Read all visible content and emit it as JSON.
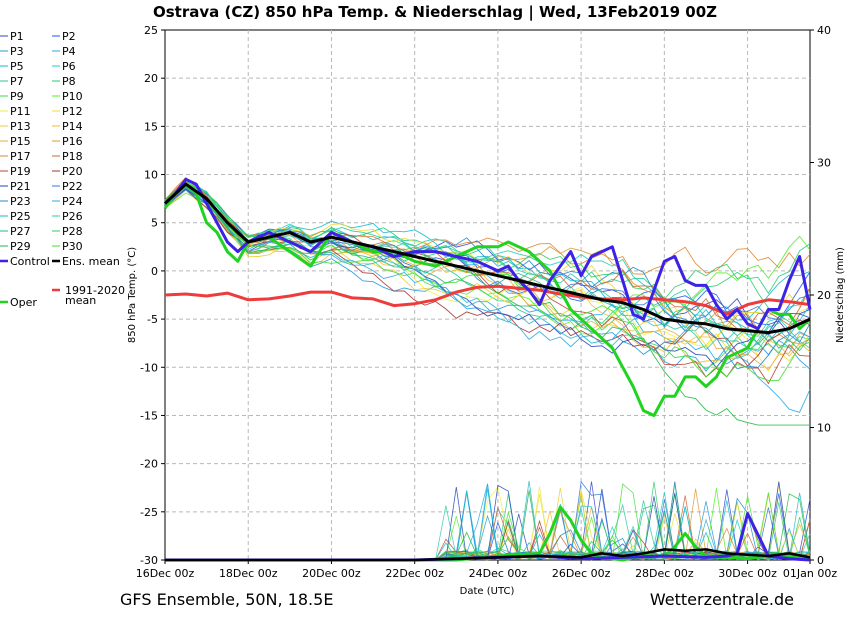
{
  "chart_data": {
    "type": "line",
    "title": "Ostrava  (CZ)  850 hPa Temp. & Niederschlag | Wed, 13Feb2019 00Z",
    "xlabel": "Date (UTC)",
    "ylabel": "850 hPa Temp. (°C)",
    "y2label": "Niederschlag (mm)",
    "xlim": [
      0,
      15.5
    ],
    "ylim": [
      -30,
      25
    ],
    "y2lim": [
      0,
      40
    ],
    "x_ticks": [
      0,
      2,
      4,
      6,
      8,
      10,
      12,
      14,
      15.5
    ],
    "x_tick_labels": [
      "16Dec 00z",
      "18Dec 00z",
      "20Dec 00z",
      "22Dec 00z",
      "24Dec 00z",
      "26Dec 00z",
      "28Dec 00z",
      "30Dec 00z",
      "01Jan 00z"
    ],
    "y_ticks": [
      25,
      20,
      15,
      10,
      5,
      0,
      -5,
      -10,
      -15,
      -20,
      -25,
      -30
    ],
    "y_tick_labels": [
      "25",
      "20",
      "15",
      "10",
      "5",
      "0",
      "-5",
      "-10",
      "-15",
      "-20",
      "-25",
      "-30"
    ],
    "y2_ticks": [
      40,
      30,
      20,
      10,
      0
    ],
    "y2_tick_labels": [
      "40",
      "30",
      "20",
      "10",
      "0"
    ],
    "grid": true,
    "footer_left": "GFS Ensemble, 50N, 18.5E",
    "footer_right": "Wetterzentrale.de",
    "legend": [
      {
        "label": "P1",
        "color": "#3344cc"
      },
      {
        "label": "P2",
        "color": "#2255ee"
      },
      {
        "label": "P3",
        "color": "#2299dd"
      },
      {
        "label": "P4",
        "color": "#22aaee"
      },
      {
        "label": "P5",
        "color": "#11bbcc"
      },
      {
        "label": "P6",
        "color": "#22ccbb"
      },
      {
        "label": "P7",
        "color": "#22cc99"
      },
      {
        "label": "P8",
        "color": "#22cc77"
      },
      {
        "label": "P9",
        "color": "#33dd55"
      },
      {
        "label": "P10",
        "color": "#55ee22"
      },
      {
        "label": "P11",
        "color": "#eeee44"
      },
      {
        "label": "P12",
        "color": "#eedd33"
      },
      {
        "label": "P13",
        "color": "#eecc33"
      },
      {
        "label": "P14",
        "color": "#eebb33"
      },
      {
        "label": "P15",
        "color": "#eeaa44"
      },
      {
        "label": "P16",
        "color": "#dd9933"
      },
      {
        "label": "P17",
        "color": "#dd8833"
      },
      {
        "label": "P18",
        "color": "#cc6633"
      },
      {
        "label": "P19",
        "color": "#bb4433"
      },
      {
        "label": "P20",
        "color": "#aa3333"
      },
      {
        "label": "P21",
        "color": "#2244bb"
      },
      {
        "label": "P22",
        "color": "#3377dd"
      },
      {
        "label": "P23",
        "color": "#2288cc"
      },
      {
        "label": "P24",
        "color": "#33aadd"
      },
      {
        "label": "P25",
        "color": "#22bbcc"
      },
      {
        "label": "P26",
        "color": "#33ccaa"
      },
      {
        "label": "P27",
        "color": "#22bb88"
      },
      {
        "label": "P28",
        "color": "#33cc66"
      },
      {
        "label": "P29",
        "color": "#22bb44"
      },
      {
        "label": "P30",
        "color": "#44dd33"
      },
      {
        "label": "Control",
        "color": "#3b22e6"
      },
      {
        "label": "Ens. mean",
        "color": "#000000"
      },
      {
        "label": "Oper",
        "color": "#1fd31f"
      },
      {
        "label": "1991-2020 mean",
        "color": "#ee3b3b"
      }
    ],
    "members_note": "P1-P30 are thin spaghetti lines spread around the ensemble mean (see series for plotted values)",
    "series": [
      {
        "name": "Control",
        "color": "#3b22e6",
        "x": [
          0,
          0.25,
          0.5,
          0.75,
          1,
          1.25,
          1.5,
          1.75,
          2,
          2.5,
          3,
          3.5,
          4,
          4.5,
          5,
          5.5,
          6,
          6.5,
          7,
          7.5,
          8,
          8.25,
          8.5,
          8.75,
          9,
          9.25,
          9.5,
          9.75,
          10,
          10.25,
          10.5,
          10.75,
          11,
          11.25,
          11.5,
          11.75,
          12,
          12.25,
          12.5,
          12.75,
          13,
          13.25,
          13.5,
          13.75,
          14,
          14.25,
          14.5,
          14.75,
          15,
          15.25,
          15.5
        ],
        "values": [
          7,
          8,
          9.5,
          9,
          7,
          5,
          3,
          2,
          3,
          4,
          3,
          2,
          4,
          3,
          2.5,
          1.5,
          2,
          2,
          1.5,
          1,
          0,
          0.5,
          -1,
          -2,
          -3.5,
          -1,
          0.5,
          2,
          -0.5,
          1.5,
          2,
          2.5,
          -1,
          -4.5,
          -5,
          -2,
          1,
          1.5,
          -1,
          -1.5,
          -1.5,
          -3.5,
          -5,
          -4,
          -5.5,
          -6,
          -4,
          -4,
          -1,
          1.5,
          -4
        ]
      },
      {
        "name": "Oper",
        "color": "#1fd31f",
        "x": [
          0,
          0.25,
          0.5,
          0.75,
          1,
          1.25,
          1.5,
          1.75,
          2,
          2.5,
          3,
          3.5,
          4,
          4.5,
          5,
          5.5,
          6,
          6.5,
          7,
          7.5,
          8,
          8.25,
          8.5,
          8.75,
          9,
          9.25,
          9.5,
          9.75,
          10,
          10.25,
          10.5,
          10.75,
          11,
          11.25,
          11.5,
          11.75,
          12,
          12.25,
          12.5,
          12.75,
          13,
          13.25,
          13.5,
          13.75,
          14,
          14.25,
          14.5,
          14.75,
          15,
          15.25,
          15.5
        ],
        "values": [
          6.5,
          8,
          9,
          8,
          5,
          4,
          2,
          1,
          3,
          3.5,
          2,
          0.5,
          4,
          3,
          2,
          2,
          1,
          0.5,
          1.5,
          2.5,
          2.5,
          3,
          2.5,
          2,
          1,
          0,
          -2,
          -4,
          -5,
          -6,
          -7,
          -8,
          -10,
          -12,
          -14.5,
          -15,
          -13,
          -13,
          -11,
          -11,
          -12,
          -11,
          -9,
          -8.5,
          -8,
          -6,
          -4,
          -4.5,
          -4.5,
          -6,
          -5
        ]
      },
      {
        "name": "Ens. mean",
        "color": "#000000",
        "x": [
          0,
          0.5,
          1,
          1.5,
          2,
          2.5,
          3,
          3.5,
          4,
          4.5,
          5,
          5.5,
          6,
          6.5,
          7,
          7.5,
          8,
          8.5,
          9,
          9.5,
          10,
          10.5,
          11,
          11.5,
          12,
          12.5,
          13,
          13.5,
          14,
          14.5,
          15,
          15.5
        ],
        "values": [
          7,
          9,
          7.5,
          5,
          3,
          3.5,
          4,
          3,
          3.5,
          3,
          2.5,
          2,
          1.5,
          1,
          0.5,
          0,
          -0.5,
          -1,
          -1.5,
          -2,
          -2.5,
          -3,
          -3.3,
          -4,
          -5,
          -5.3,
          -5.5,
          -6,
          -6.2,
          -6.4,
          -6,
          -5
        ]
      },
      {
        "name": "1991-2020 mean",
        "color": "#ee3b3b",
        "x": [
          0,
          0.5,
          1,
          1.5,
          2,
          2.5,
          3,
          3.5,
          4,
          4.5,
          5,
          5.5,
          6,
          6.5,
          7,
          7.5,
          8,
          8.5,
          9,
          9.5,
          10,
          10.5,
          11,
          11.5,
          12,
          12.5,
          13,
          13.5,
          14,
          14.5,
          15,
          15.5
        ],
        "values": [
          -2.5,
          -2.4,
          -2.6,
          -2.3,
          -3,
          -2.9,
          -2.6,
          -2.2,
          -2.2,
          -2.8,
          -2.9,
          -3.6,
          -3.4,
          -3,
          -2.2,
          -1.7,
          -1.6,
          -1.8,
          -2,
          -2.4,
          -2.7,
          -2.9,
          -3,
          -2.8,
          -3,
          -3.2,
          -3.6,
          -4.5,
          -3.5,
          -3,
          -3.2,
          -3.5
        ]
      },
      {
        "name": "Oper precip (mm)",
        "color": "#1fd31f",
        "x": [
          0,
          1,
          2,
          3,
          4,
          5,
          6,
          7,
          8,
          9,
          9.25,
          9.5,
          9.75,
          10,
          10.25,
          10.5,
          11,
          11.5,
          12,
          12.25,
          12.5,
          12.75,
          13,
          13.5,
          14,
          14.5,
          15,
          15.5
        ],
        "values": [
          0,
          0,
          0,
          0,
          0,
          0,
          0,
          0,
          0.3,
          0.5,
          2,
          4,
          3,
          1.5,
          0.5,
          0.2,
          0,
          0.3,
          0.3,
          1,
          2,
          1,
          0.3,
          0.2,
          0.1,
          0.3,
          0.2,
          0.1
        ]
      },
      {
        "name": "Control precip (mm)",
        "color": "#3b22e6",
        "x": [
          0,
          2,
          4,
          6,
          8,
          9,
          10,
          11,
          12,
          13,
          13.5,
          13.75,
          14,
          14.5,
          15,
          15.5
        ],
        "values": [
          0,
          0,
          0,
          0,
          0.2,
          0.3,
          0.1,
          0.2,
          0.3,
          0.2,
          0.3,
          0.5,
          3.5,
          0.3,
          0.1,
          0
        ]
      },
      {
        "name": "Mean precip (mm)",
        "color": "#000000",
        "x": [
          0,
          2,
          4,
          6,
          7,
          8,
          9,
          10,
          10.5,
          11,
          11.5,
          12,
          12.5,
          13,
          13.5,
          14,
          14.5,
          15,
          15.5
        ],
        "values": [
          0,
          0,
          0,
          0,
          0.1,
          0.2,
          0.3,
          0.2,
          0.5,
          0.3,
          0.5,
          0.8,
          0.7,
          0.8,
          0.5,
          0.4,
          0.3,
          0.5,
          0.2
        ]
      }
    ]
  }
}
